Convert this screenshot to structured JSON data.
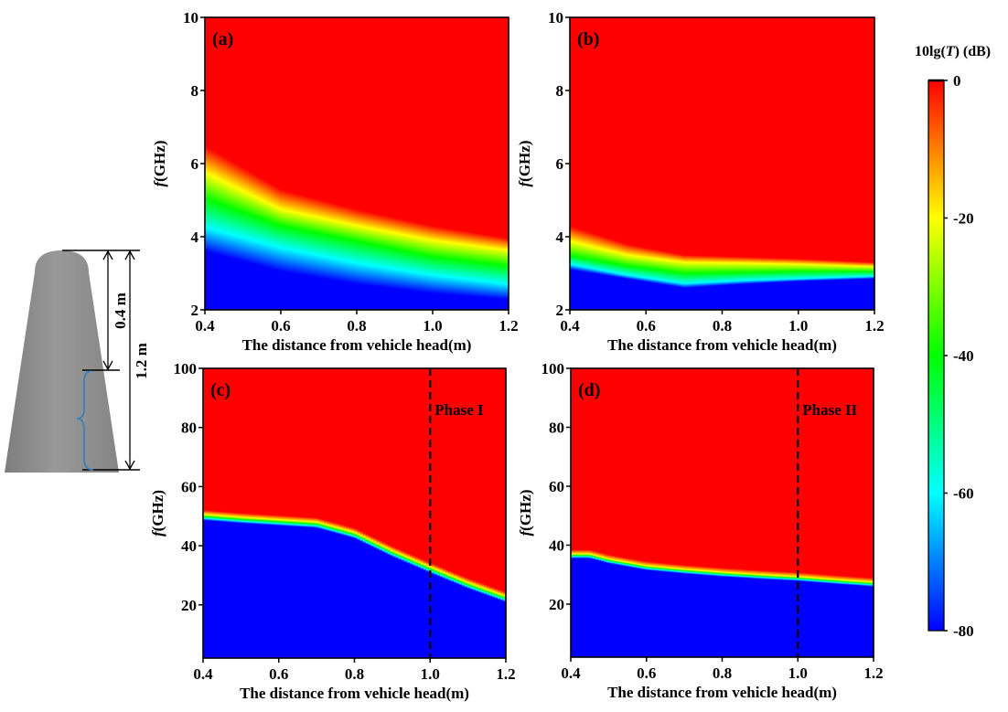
{
  "diagram": {
    "label_short": "0.4 m",
    "label_long": "1.2 m",
    "body_color": "#8c8c8c",
    "brace_color": "#2f7fc1"
  },
  "colorbar": {
    "title_prefix": "10lg(",
    "title_var": "T",
    "title_suffix": ") (dB)",
    "range": [
      -80,
      0
    ],
    "ticks": [
      0,
      -20,
      -40,
      -60,
      -80
    ],
    "tick_labels": [
      "0",
      "-20",
      "-40",
      "-60",
      "-80"
    ],
    "colormap": [
      {
        "value": 0,
        "color": "#ff0000"
      },
      {
        "value": -10,
        "color": "#ff8000"
      },
      {
        "value": -20,
        "color": "#ffff00"
      },
      {
        "value": -30,
        "color": "#80ff00"
      },
      {
        "value": -40,
        "color": "#00ff00"
      },
      {
        "value": -50,
        "color": "#00ff80"
      },
      {
        "value": -60,
        "color": "#00ffff"
      },
      {
        "value": -70,
        "color": "#0080ff"
      },
      {
        "value": -80,
        "color": "#0000ff"
      }
    ]
  },
  "chart_data": [
    {
      "id": "a",
      "type": "heatmap",
      "panel_label": "(a)",
      "xlabel": "The distance from vehicle head(m)",
      "ylabel_var": "f",
      "ylabel_unit": "(GHz)",
      "xlim": [
        0.4,
        1.2
      ],
      "ylim": [
        2,
        10
      ],
      "xticks": [
        0.4,
        0.6,
        0.8,
        1.0,
        1.2
      ],
      "xtick_labels": [
        "0.4",
        "0.6",
        "0.8",
        "1.0",
        "1.2"
      ],
      "yticks": [
        2,
        4,
        6,
        8,
        10
      ],
      "ytick_labels": [
        "2",
        "4",
        "6",
        "8",
        "10"
      ],
      "value_label": "10lg(T) (dB)",
      "contours": {
        "x": [
          0.4,
          0.6,
          0.8,
          1.0,
          1.2
        ],
        "levels": {
          "0": [
            6.5,
            5.3,
            4.75,
            4.3,
            3.96
          ],
          "-20": [
            5.76,
            4.75,
            4.3,
            3.9,
            3.63
          ],
          "-40": [
            5.04,
            4.3,
            3.88,
            3.45,
            3.2
          ],
          "-60": [
            4.26,
            3.7,
            3.28,
            2.95,
            2.7
          ],
          "-80": [
            3.6,
            3.05,
            2.7,
            2.45,
            2.28
          ]
        }
      }
    },
    {
      "id": "b",
      "type": "heatmap",
      "panel_label": "(b)",
      "xlabel": "The distance from vehicle head(m)",
      "ylabel_var": "f",
      "ylabel_unit": "(GHz)",
      "xlim": [
        0.4,
        1.2
      ],
      "ylim": [
        2,
        10
      ],
      "xticks": [
        0.4,
        0.6,
        0.8,
        1.0,
        1.2
      ],
      "xtick_labels": [
        "0.4",
        "0.6",
        "0.8",
        "1.0",
        "1.2"
      ],
      "yticks": [
        2,
        4,
        6,
        8,
        10
      ],
      "ytick_labels": [
        "2",
        "4",
        "6",
        "8",
        "10"
      ],
      "value_label": "10lg(T) (dB)",
      "contours": {
        "x": [
          0.4,
          0.55,
          0.7,
          0.85,
          1.0,
          1.2
        ],
        "levels": {
          "0": [
            4.3,
            3.8,
            3.5,
            3.45,
            3.4,
            3.3
          ],
          "-20": [
            3.88,
            3.5,
            3.3,
            3.28,
            3.25,
            3.18
          ],
          "-40": [
            3.48,
            3.2,
            3.0,
            3.02,
            3.05,
            3.05
          ],
          "-60": [
            3.25,
            2.95,
            2.72,
            2.8,
            2.85,
            2.92
          ],
          "-80": [
            3.1,
            2.85,
            2.6,
            2.7,
            2.78,
            2.85
          ]
        }
      }
    },
    {
      "id": "c",
      "type": "heatmap",
      "panel_label": "(c)",
      "xlabel": "The distance from vehicle head(m)",
      "ylabel_var": "f",
      "ylabel_unit": "(GHz)",
      "xlim": [
        0.4,
        1.2
      ],
      "ylim": [
        2,
        100
      ],
      "xticks": [
        0.4,
        0.6,
        0.8,
        1.0,
        1.2
      ],
      "xtick_labels": [
        "0.4",
        "0.6",
        "0.8",
        "1.0",
        "1.2"
      ],
      "yticks": [
        20,
        40,
        60,
        80,
        100
      ],
      "ytick_labels": [
        "20",
        "40",
        "60",
        "80",
        "100"
      ],
      "value_label": "10lg(T) (dB)",
      "annotation": {
        "text": "Phase I",
        "x": 1.0
      },
      "contours": {
        "x": [
          0.4,
          0.5,
          0.6,
          0.7,
          0.8,
          0.9,
          1.0,
          1.1,
          1.2
        ],
        "levels": {
          "0": [
            52.1,
            51.1,
            50.3,
            49.5,
            46.0,
            39.8,
            34.3,
            29.0,
            24.4
          ],
          "-20": [
            50.6,
            49.6,
            48.8,
            48.0,
            44.5,
            38.3,
            32.8,
            27.5,
            22.9
          ],
          "-40": [
            49.9,
            48.9,
            48.1,
            47.3,
            43.8,
            37.6,
            32.1,
            26.8,
            22.2
          ],
          "-60": [
            49.3,
            48.3,
            47.5,
            46.7,
            43.2,
            37.0,
            31.5,
            26.2,
            21.6
          ],
          "-80": [
            48.6,
            47.6,
            46.8,
            46.0,
            42.5,
            36.3,
            30.8,
            25.5,
            20.9
          ]
        }
      }
    },
    {
      "id": "d",
      "type": "heatmap",
      "panel_label": "(d)",
      "xlabel": "The distance from vehicle head(m)",
      "ylabel_var": "f",
      "ylabel_unit": "(GHz)",
      "xlim": [
        0.4,
        1.2
      ],
      "ylim": [
        2,
        100
      ],
      "xticks": [
        0.4,
        0.6,
        0.8,
        1.0,
        1.2
      ],
      "xtick_labels": [
        "0.4",
        "0.6",
        "0.8",
        "1.0",
        "1.2"
      ],
      "yticks": [
        20,
        40,
        60,
        80,
        100
      ],
      "ytick_labels": [
        "20",
        "40",
        "60",
        "80",
        "100"
      ],
      "value_label": "10lg(T) (dB)",
      "annotation": {
        "text": "Phase II",
        "x": 1.0
      },
      "contours": {
        "x": [
          0.4,
          0.45,
          0.5,
          0.6,
          0.7,
          0.8,
          0.9,
          1.0,
          1.1,
          1.2
        ],
        "levels": {
          "0": [
            38.5,
            38.5,
            36.8,
            34.5,
            33.3,
            32.3,
            31.5,
            30.8,
            29.8,
            28.9
          ],
          "-20": [
            37.0,
            37.0,
            35.3,
            33.0,
            31.8,
            30.8,
            30.0,
            29.3,
            28.3,
            27.4
          ],
          "-40": [
            36.5,
            36.5,
            34.8,
            32.5,
            31.3,
            30.3,
            29.5,
            28.8,
            27.8,
            26.9
          ],
          "-60": [
            36.1,
            36.1,
            34.4,
            32.1,
            30.9,
            29.9,
            29.1,
            28.4,
            27.4,
            26.5
          ],
          "-80": [
            35.5,
            35.5,
            33.8,
            31.5,
            30.3,
            29.3,
            28.5,
            27.8,
            26.8,
            25.9
          ]
        }
      }
    }
  ]
}
